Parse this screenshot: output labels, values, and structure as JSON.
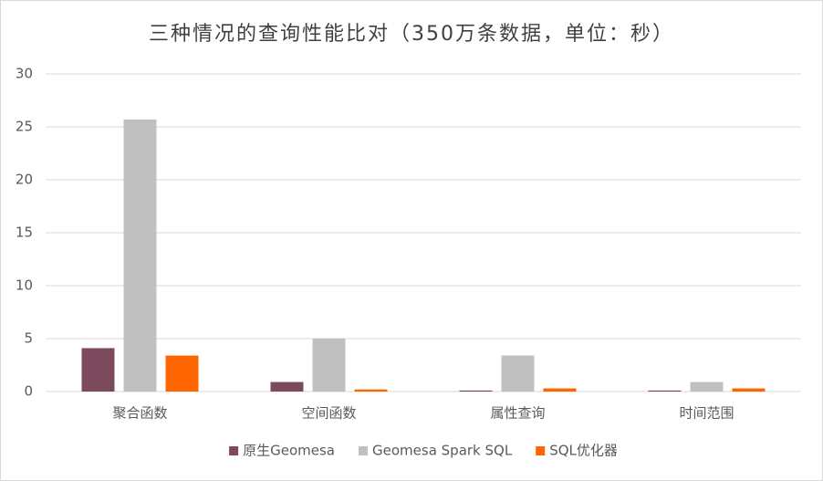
{
  "chart_data": {
    "type": "bar",
    "title": "三种情况的查询性能比对（350万条数据，单位：秒）",
    "categories": [
      "聚合函数",
      "空间函数",
      "属性查询",
      "时间范围"
    ],
    "series": [
      {
        "name": "原生Geomesa",
        "color": "#7b4a5c",
        "values": [
          4.1,
          0.9,
          0.1,
          0.1
        ]
      },
      {
        "name": "Geomesa Spark SQL",
        "color": "#c0c0c0",
        "values": [
          25.7,
          5.0,
          3.4,
          0.9
        ]
      },
      {
        "name": "SQL优化器",
        "color": "#ff6600",
        "values": [
          3.4,
          0.2,
          0.3,
          0.3
        ]
      }
    ],
    "ylim": [
      0,
      30
    ],
    "yticks": [
      0,
      5,
      10,
      15,
      20,
      25,
      30
    ],
    "grid": true,
    "legend": "bottom"
  }
}
